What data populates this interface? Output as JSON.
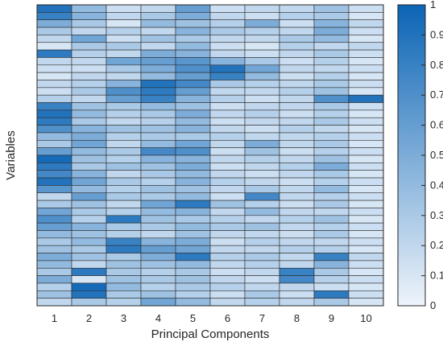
{
  "chart_data": {
    "type": "heatmap",
    "xlabel": "Principal Components",
    "ylabel": "Variables",
    "x_categories": [
      "1",
      "2",
      "3",
      "4",
      "5",
      "6",
      "7",
      "8",
      "9",
      "10"
    ],
    "n_rows": 40,
    "colorbar": {
      "range": [
        0,
        1
      ],
      "ticks": [
        "0",
        "0.1",
        "0.2",
        "0.3",
        "0.4",
        "0.5",
        "0.6",
        "0.7",
        "0.8",
        "0.9",
        "1"
      ],
      "color_low": "#eef4fb",
      "color_high": "#0b64b5"
    },
    "values": [
      [
        0.9,
        0.4,
        0.15,
        0.2,
        0.6,
        0.15,
        0.2,
        0.2,
        0.35,
        0.15
      ],
      [
        0.8,
        0.45,
        0.2,
        0.3,
        0.5,
        0.2,
        0.15,
        0.25,
        0.3,
        0.1
      ],
      [
        0.5,
        0.3,
        0.1,
        0.4,
        0.35,
        0.25,
        0.5,
        0.15,
        0.45,
        0.2
      ],
      [
        0.3,
        0.2,
        0.25,
        0.2,
        0.45,
        0.3,
        0.25,
        0.2,
        0.5,
        0.15
      ],
      [
        0.2,
        0.55,
        0.15,
        0.35,
        0.3,
        0.2,
        0.2,
        0.3,
        0.4,
        0.1
      ],
      [
        0.1,
        0.3,
        0.3,
        0.2,
        0.4,
        0.15,
        0.1,
        0.25,
        0.2,
        0.2
      ],
      [
        0.85,
        0.25,
        0.2,
        0.5,
        0.45,
        0.2,
        0.15,
        0.2,
        0.3,
        0.15
      ],
      [
        0.2,
        0.2,
        0.55,
        0.6,
        0.65,
        0.45,
        0.3,
        0.15,
        0.25,
        0.1
      ],
      [
        0.15,
        0.15,
        0.3,
        0.5,
        0.7,
        0.9,
        0.55,
        0.2,
        0.2,
        0.15
      ],
      [
        0.1,
        0.2,
        0.2,
        0.4,
        0.6,
        0.8,
        0.4,
        0.15,
        0.25,
        0.1
      ],
      [
        0.2,
        0.25,
        0.45,
        0.9,
        0.75,
        0.3,
        0.25,
        0.2,
        0.3,
        0.15
      ],
      [
        0.15,
        0.3,
        0.7,
        0.85,
        0.6,
        0.2,
        0.2,
        0.25,
        0.35,
        0.1
      ],
      [
        0.25,
        0.2,
        0.6,
        0.8,
        0.45,
        0.25,
        0.15,
        0.2,
        0.7,
        0.9
      ],
      [
        0.8,
        0.35,
        0.3,
        0.4,
        0.35,
        0.15,
        0.2,
        0.2,
        0.3,
        0.15
      ],
      [
        0.9,
        0.4,
        0.25,
        0.3,
        0.5,
        0.2,
        0.25,
        0.15,
        0.25,
        0.1
      ],
      [
        0.85,
        0.3,
        0.2,
        0.25,
        0.4,
        0.15,
        0.2,
        0.2,
        0.3,
        0.15
      ],
      [
        0.7,
        0.45,
        0.35,
        0.35,
        0.45,
        0.2,
        0.15,
        0.25,
        0.2,
        0.1
      ],
      [
        0.4,
        0.5,
        0.25,
        0.3,
        0.3,
        0.25,
        0.2,
        0.2,
        0.25,
        0.15
      ],
      [
        0.3,
        0.55,
        0.2,
        0.4,
        0.55,
        0.2,
        0.5,
        0.2,
        0.3,
        0.1
      ],
      [
        0.6,
        0.4,
        0.3,
        0.75,
        0.7,
        0.15,
        0.35,
        0.15,
        0.25,
        0.15
      ],
      [
        0.95,
        0.35,
        0.25,
        0.45,
        0.45,
        0.2,
        0.25,
        0.2,
        0.35,
        0.1
      ],
      [
        0.85,
        0.3,
        0.35,
        0.35,
        0.5,
        0.15,
        0.2,
        0.25,
        0.5,
        0.15
      ],
      [
        0.75,
        0.45,
        0.2,
        0.3,
        0.4,
        0.2,
        0.15,
        0.2,
        0.3,
        0.1
      ],
      [
        0.9,
        0.55,
        0.3,
        0.25,
        0.45,
        0.25,
        0.2,
        0.15,
        0.25,
        0.15
      ],
      [
        0.65,
        0.4,
        0.25,
        0.35,
        0.35,
        0.2,
        0.3,
        0.2,
        0.4,
        0.1
      ],
      [
        0.2,
        0.6,
        0.3,
        0.3,
        0.4,
        0.15,
        0.75,
        0.2,
        0.25,
        0.15
      ],
      [
        0.3,
        0.35,
        0.2,
        0.55,
        0.85,
        0.35,
        0.25,
        0.15,
        0.3,
        0.1
      ],
      [
        0.55,
        0.3,
        0.25,
        0.4,
        0.45,
        0.2,
        0.4,
        0.2,
        0.2,
        0.15
      ],
      [
        0.7,
        0.25,
        0.85,
        0.35,
        0.3,
        0.25,
        0.2,
        0.25,
        0.35,
        0.1
      ],
      [
        0.6,
        0.45,
        0.3,
        0.3,
        0.4,
        0.3,
        0.35,
        0.2,
        0.25,
        0.15
      ],
      [
        0.4,
        0.35,
        0.25,
        0.2,
        0.35,
        0.2,
        0.2,
        0.15,
        0.3,
        0.1
      ],
      [
        0.3,
        0.4,
        0.8,
        0.45,
        0.5,
        0.15,
        0.25,
        0.2,
        0.2,
        0.15
      ],
      [
        0.35,
        0.3,
        0.85,
        0.6,
        0.55,
        0.2,
        0.2,
        0.25,
        0.25,
        0.1
      ],
      [
        0.5,
        0.35,
        0.3,
        0.5,
        0.85,
        0.25,
        0.3,
        0.2,
        0.8,
        0.2
      ],
      [
        0.4,
        0.2,
        0.35,
        0.35,
        0.4,
        0.2,
        0.25,
        0.2,
        0.45,
        0.15
      ],
      [
        0.3,
        0.85,
        0.3,
        0.25,
        0.3,
        0.15,
        0.2,
        0.8,
        0.3,
        0.1
      ],
      [
        0.5,
        0.1,
        0.35,
        0.3,
        0.35,
        0.2,
        0.15,
        0.75,
        0.25,
        0.15
      ],
      [
        0.25,
        0.95,
        0.4,
        0.25,
        0.3,
        0.25,
        0.2,
        0.2,
        0.15,
        0.1
      ],
      [
        0.35,
        0.9,
        0.3,
        0.35,
        0.25,
        0.15,
        0.3,
        0.15,
        0.85,
        0.15
      ],
      [
        0.2,
        0.3,
        0.25,
        0.55,
        0.4,
        0.2,
        0.25,
        0.2,
        0.3,
        0.1
      ]
    ]
  }
}
